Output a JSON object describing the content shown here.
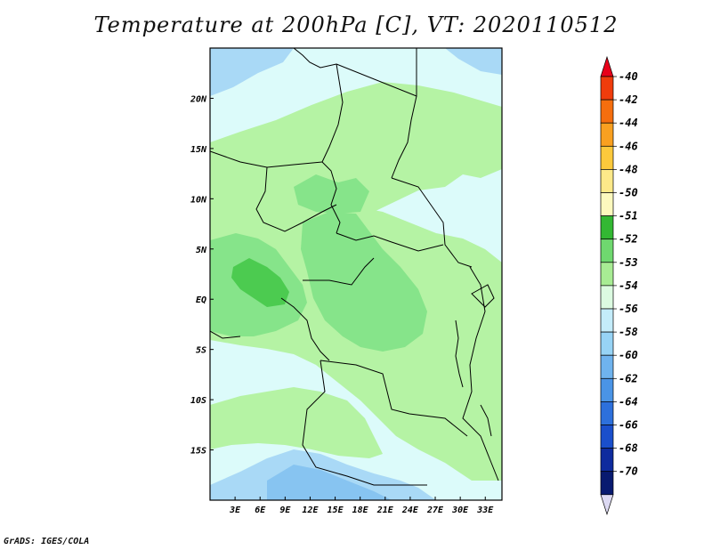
{
  "title": "Temperature at 200hPa [C], VT: 2020110512",
  "footer_credit": "GrADS: IGES/COLA",
  "map": {
    "lon_range": [
      0,
      35
    ],
    "lat_range": [
      -20,
      25
    ],
    "x_ticks": [
      "3E",
      "6E",
      "9E",
      "12E",
      "15E",
      "18E",
      "21E",
      "24E",
      "27E",
      "30E",
      "33E"
    ],
    "x_tick_values": [
      3,
      6,
      9,
      12,
      15,
      18,
      21,
      24,
      27,
      30,
      33
    ],
    "y_ticks": [
      "20N",
      "15N",
      "10N",
      "5N",
      "EQ",
      "5S",
      "10S",
      "15S"
    ],
    "y_tick_values": [
      20,
      15,
      10,
      5,
      0,
      -5,
      -10,
      -15
    ]
  },
  "colorbar": {
    "labels": [
      "-40",
      "-42",
      "-44",
      "-46",
      "-48",
      "-50",
      "-51",
      "-52",
      "-53",
      "-54",
      "-56",
      "-58",
      "-60",
      "-62",
      "-64",
      "-66",
      "-68",
      "-70"
    ],
    "colors": [
      "#e8001a",
      "#f03c0c",
      "#f56e0e",
      "#f9a020",
      "#fcc93c",
      "#fde989",
      "#fdf9be",
      "#33b833",
      "#6fd86f",
      "#a8ec94",
      "#dcfbe1",
      "#c4ecfa",
      "#97d3f5",
      "#6fb3ee",
      "#4a94e6",
      "#2d70dc",
      "#1a4fcc",
      "#0e2b9e",
      "#081a70",
      "#dcd9f2"
    ]
  },
  "colors": {
    "lt_cyan": "#dcfbfa",
    "lt_green": "#b5f3a4",
    "mid_green": "#86e48a",
    "dk_green": "#4ccb50",
    "lt_blue": "#a9d9f6",
    "mid_blue": "#87c4f1",
    "border": "#000000"
  }
}
